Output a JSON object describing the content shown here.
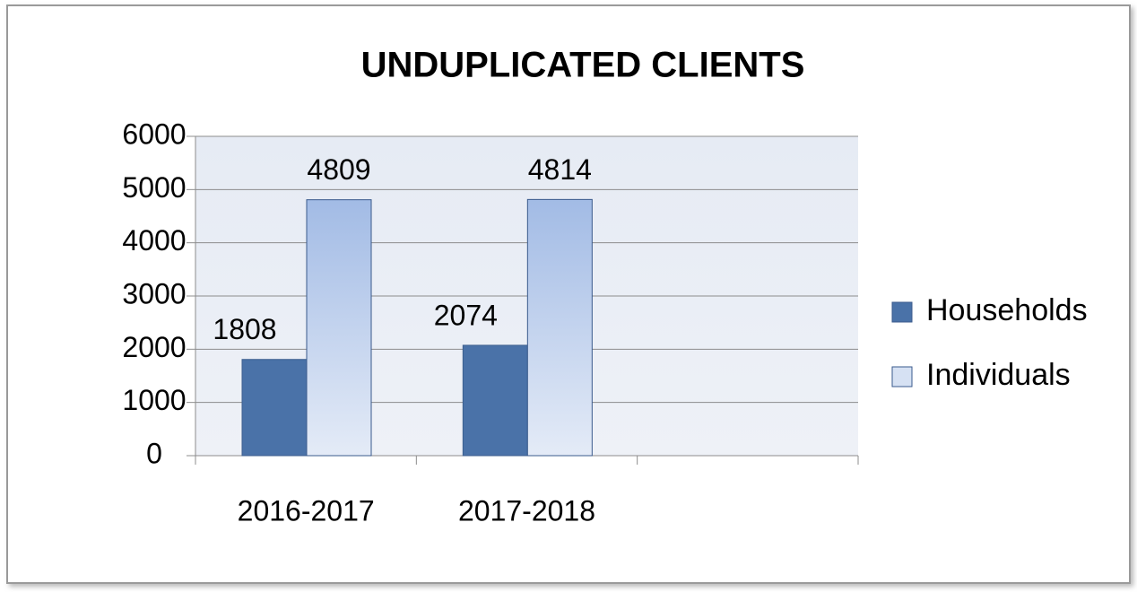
{
  "chart_data": {
    "type": "bar",
    "title": "UNDUPLICATED CLIENTS",
    "categories": [
      "2016-2017",
      "2017-2018",
      null
    ],
    "series": [
      {
        "name": "Households",
        "color": "#4a72a8",
        "values": [
          1808,
          2074,
          null
        ]
      },
      {
        "name": "Individuals",
        "color": "#b4c8ea",
        "values": [
          4809,
          4814,
          null
        ]
      }
    ],
    "ylim": [
      0,
      6000
    ],
    "yticks": [
      0,
      1000,
      2000,
      3000,
      4000,
      5000,
      6000
    ],
    "grid": true,
    "legend": "right"
  }
}
